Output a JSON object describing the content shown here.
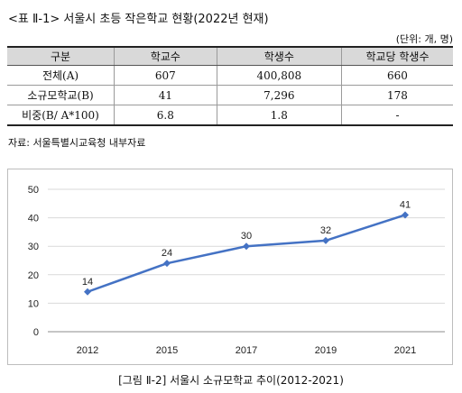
{
  "table_title": "<표 Ⅱ-1> 서울시 초등 작은학교 현황(2022년 현재)",
  "unit_note": "(단위: 개, 명)",
  "table": {
    "headers": [
      "구분",
      "학교수",
      "학생수",
      "학교당 학생수"
    ],
    "rows": [
      [
        "전체(A)",
        "607",
        "400,808",
        "660"
      ],
      [
        "소규모학교(B)",
        "41",
        "7,296",
        "178"
      ],
      [
        "비중(B/ A*100)",
        "6.8",
        "1.8",
        "-"
      ]
    ]
  },
  "source_note": "자료: 서울특별시교육청 내부자료",
  "figure_caption": "[그림 Ⅱ-2] 서울시 소규모학교 추이(2012-2021)",
  "chart_data": {
    "type": "line",
    "categories": [
      "2012",
      "2015",
      "2017",
      "2019",
      "2021"
    ],
    "series": [
      {
        "values": [
          14,
          24,
          30,
          32,
          41
        ],
        "color": "#4472c4"
      }
    ],
    "ylim": [
      0,
      50
    ],
    "yticks": [
      0,
      10,
      20,
      30,
      40,
      50
    ],
    "grid": true,
    "legend": "none",
    "data_labels": true
  }
}
